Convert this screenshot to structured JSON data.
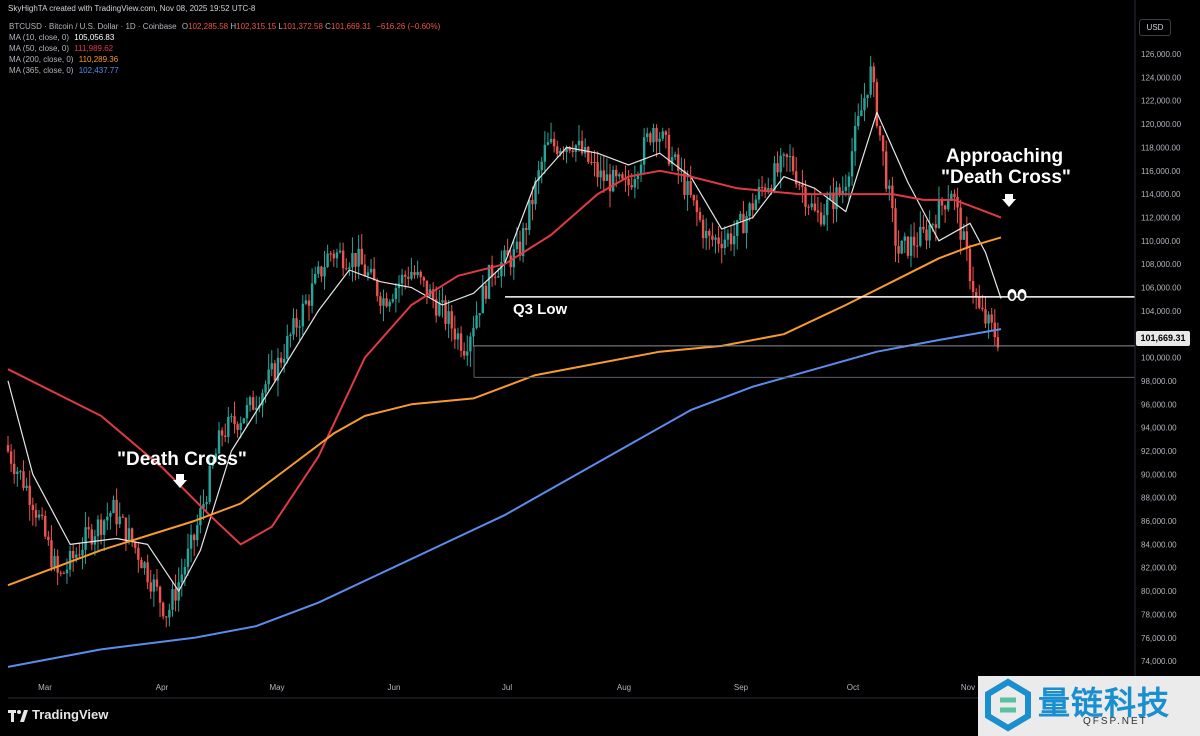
{
  "header": {
    "attribution": "SkyHighTA created with TradingView.com, Nov 08, 2025 19:52 UTC-8",
    "symbol_line": "BTCUSD · Bitcoin / U.S. Dollar · 1D · Coinbase",
    "ohlc": [
      {
        "label": "O",
        "value": "102,285.58"
      },
      {
        "label": "H",
        "value": "102,315.15"
      },
      {
        "label": "L",
        "value": "101,372.58"
      },
      {
        "label": "C",
        "value": "101,669.31"
      }
    ],
    "change": "−616.26 (−0.60%)",
    "indicators": [
      {
        "label": "MA (10, close, 0)",
        "value": "105,056.83",
        "color": "#ffffff"
      },
      {
        "label": "MA (50, close, 0)",
        "value": "111,989.62",
        "color": "#e03a45"
      },
      {
        "label": "MA (200, close, 0)",
        "value": "110,289.36",
        "color": "#f89b2e"
      },
      {
        "label": "MA (365, close, 0)",
        "value": "102,437.77",
        "color": "#5b8def"
      }
    ]
  },
  "price_axis": {
    "unit": "USD",
    "ticks": [
      "126,000.00",
      "124,000.00",
      "122,000.00",
      "120,000.00",
      "118,000.00",
      "116,000.00",
      "114,000.00",
      "112,000.00",
      "110,000.00",
      "108,000.00",
      "106,000.00",
      "104,000.00",
      "102,000.00",
      "100,000.00",
      "98,000.00",
      "96,000.00",
      "94,000.00",
      "92,000.00",
      "90,000.00",
      "88,000.00",
      "86,000.00",
      "84,000.00",
      "82,000.00",
      "80,000.00",
      "78,000.00",
      "76,000.00",
      "74,000.00"
    ],
    "last_price": "101,669.31"
  },
  "time_axis": {
    "labels": [
      "Mar",
      "Apr",
      "May",
      "Jun",
      "Jul",
      "Aug",
      "Sep",
      "Oct",
      "Nov"
    ]
  },
  "annotations": {
    "death_cross": "\"Death Cross\"",
    "approaching_line1": "Approaching",
    "approaching_line2": "\"Death Cross\"",
    "q3_low": "Q3 Low"
  },
  "footer": {
    "brand": "TradingView"
  },
  "watermark": {
    "text": "量链科技",
    "sub": "QFSP.NET"
  },
  "colors": {
    "up": "#26a69a",
    "down": "#ef5350",
    "ma10": "#e6e6e6",
    "ma50": "#e03a45",
    "ma200": "#f89b2e",
    "ma365": "#5b8def",
    "background": "#000000"
  },
  "chart_data": {
    "type": "line",
    "title": "BTCUSD · Bitcoin / U.S. Dollar · 1D · Coinbase",
    "x": [
      "Mar",
      "Apr",
      "May",
      "Jun",
      "Jul",
      "Aug",
      "Sep",
      "Oct",
      "Nov"
    ],
    "ylim": [
      73000,
      127000
    ],
    "price_path": [
      [
        "2025-02-24",
        92500
      ],
      [
        "2025-03-03",
        88000
      ],
      [
        "2025-03-10",
        81000
      ],
      [
        "2025-03-17",
        84500
      ],
      [
        "2025-03-24",
        87000
      ],
      [
        "2025-03-31",
        83000
      ],
      [
        "2025-04-07",
        78000
      ],
      [
        "2025-04-14",
        84500
      ],
      [
        "2025-04-21",
        93500
      ],
      [
        "2025-04-28",
        95500
      ],
      [
        "2025-05-05",
        99000
      ],
      [
        "2025-05-12",
        104000
      ],
      [
        "2025-05-19",
        109000
      ],
      [
        "2025-05-26",
        108500
      ],
      [
        "2025-06-02",
        105000
      ],
      [
        "2025-06-09",
        107500
      ],
      [
        "2025-06-16",
        104500
      ],
      [
        "2025-06-23",
        101000
      ],
      [
        "2025-06-30",
        107500
      ],
      [
        "2025-07-07",
        109000
      ],
      [
        "2025-07-14",
        118000
      ],
      [
        "2025-07-21",
        118500
      ],
      [
        "2025-07-28",
        115500
      ],
      [
        "2025-08-04",
        114500
      ],
      [
        "2025-08-11",
        120000
      ],
      [
        "2025-08-18",
        115500
      ],
      [
        "2025-08-25",
        110000
      ],
      [
        "2025-09-01",
        110500
      ],
      [
        "2025-09-08",
        114500
      ],
      [
        "2025-09-15",
        117000
      ],
      [
        "2025-09-22",
        112000
      ],
      [
        "2025-09-29",
        114500
      ],
      [
        "2025-10-06",
        124500
      ],
      [
        "2025-10-13",
        109000
      ],
      [
        "2025-10-20",
        110500
      ],
      [
        "2025-10-27",
        114500
      ],
      [
        "2025-11-03",
        104000
      ],
      [
        "2025-11-08",
        101669
      ]
    ],
    "series": [
      {
        "name": "MA (10, close, 0)",
        "values": [
          [
            0,
            98000
          ],
          [
            8,
            90000
          ],
          [
            20,
            84000
          ],
          [
            35,
            84500
          ],
          [
            45,
            84000
          ],
          [
            55,
            80000
          ],
          [
            62,
            83500
          ],
          [
            72,
            92000
          ],
          [
            85,
            97500
          ],
          [
            100,
            104000
          ],
          [
            110,
            107500
          ],
          [
            120,
            106500
          ],
          [
            130,
            106000
          ],
          [
            140,
            104500
          ],
          [
            150,
            105500
          ],
          [
            160,
            108000
          ],
          [
            170,
            115000
          ],
          [
            180,
            118000
          ],
          [
            190,
            117500
          ],
          [
            200,
            116500
          ],
          [
            210,
            117500
          ],
          [
            220,
            115500
          ],
          [
            230,
            111000
          ],
          [
            240,
            112000
          ],
          [
            250,
            115500
          ],
          [
            260,
            114500
          ],
          [
            270,
            112500
          ],
          [
            280,
            121000
          ],
          [
            290,
            115000
          ],
          [
            300,
            110000
          ],
          [
            310,
            111500
          ],
          [
            315,
            109000
          ],
          [
            320,
            105056
          ]
        ]
      },
      {
        "name": "MA (50, close, 0)",
        "values": [
          [
            0,
            99000
          ],
          [
            30,
            95000
          ],
          [
            50,
            90500
          ],
          [
            65,
            86500
          ],
          [
            75,
            84000
          ],
          [
            85,
            85500
          ],
          [
            100,
            91500
          ],
          [
            115,
            100000
          ],
          [
            130,
            104500
          ],
          [
            145,
            107000
          ],
          [
            160,
            108000
          ],
          [
            175,
            110500
          ],
          [
            190,
            114000
          ],
          [
            200,
            115500
          ],
          [
            210,
            116000
          ],
          [
            220,
            115500
          ],
          [
            235,
            114500
          ],
          [
            255,
            114000
          ],
          [
            270,
            114000
          ],
          [
            285,
            114000
          ],
          [
            295,
            113500
          ],
          [
            305,
            113500
          ],
          [
            315,
            112500
          ],
          [
            320,
            111989
          ]
        ]
      },
      {
        "name": "MA (200, close, 0)",
        "values": [
          [
            0,
            80500
          ],
          [
            30,
            83500
          ],
          [
            60,
            86000
          ],
          [
            75,
            87500
          ],
          [
            90,
            90500
          ],
          [
            105,
            93500
          ],
          [
            115,
            95000
          ],
          [
            130,
            96000
          ],
          [
            150,
            96500
          ],
          [
            170,
            98500
          ],
          [
            190,
            99500
          ],
          [
            210,
            100500
          ],
          [
            230,
            101000
          ],
          [
            250,
            102000
          ],
          [
            270,
            104500
          ],
          [
            285,
            106500
          ],
          [
            300,
            108500
          ],
          [
            310,
            109500
          ],
          [
            320,
            110289
          ]
        ]
      },
      {
        "name": "MA (365, close, 0)",
        "values": [
          [
            0,
            73500
          ],
          [
            30,
            75000
          ],
          [
            60,
            76000
          ],
          [
            80,
            77000
          ],
          [
            100,
            79000
          ],
          [
            120,
            81500
          ],
          [
            140,
            84000
          ],
          [
            160,
            86500
          ],
          [
            180,
            89500
          ],
          [
            200,
            92500
          ],
          [
            220,
            95500
          ],
          [
            240,
            97500
          ],
          [
            260,
            99000
          ],
          [
            280,
            100500
          ],
          [
            300,
            101500
          ],
          [
            320,
            102437
          ]
        ]
      }
    ],
    "horizontal_levels": [
      {
        "label": "Q3 Low",
        "value": 105200
      },
      {
        "value": 101000
      },
      {
        "value": 98300
      }
    ]
  }
}
